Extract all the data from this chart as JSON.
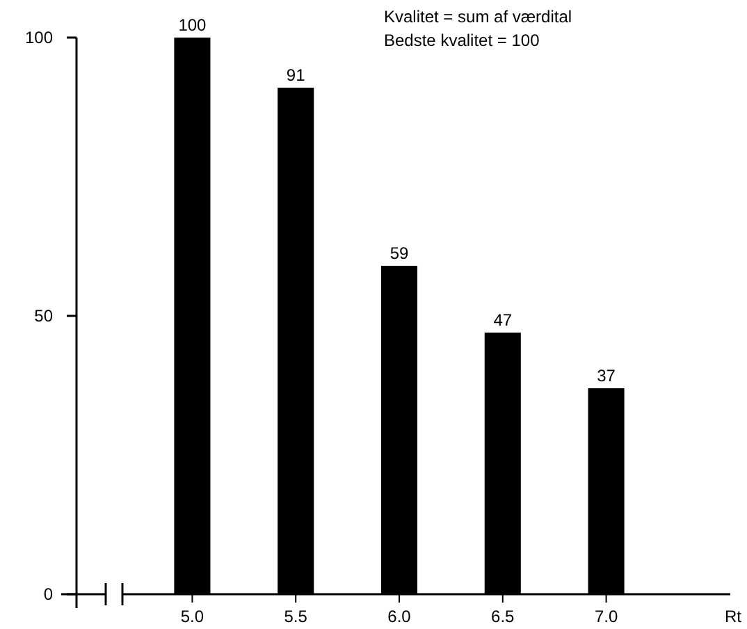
{
  "chart_data": {
    "type": "bar",
    "categories": [
      "5.0",
      "5.5",
      "6.0",
      "6.5",
      "7.0"
    ],
    "values": [
      100,
      91,
      59,
      47,
      37
    ],
    "color": "#000000",
    "ylim": [
      0,
      100
    ],
    "yticks": [
      0,
      50,
      100
    ],
    "xlabel": "Rt",
    "data_labels": true,
    "annotations": [
      "Kvalitet = sum af værdital",
      "Bedste kvalitet = 100"
    ]
  }
}
